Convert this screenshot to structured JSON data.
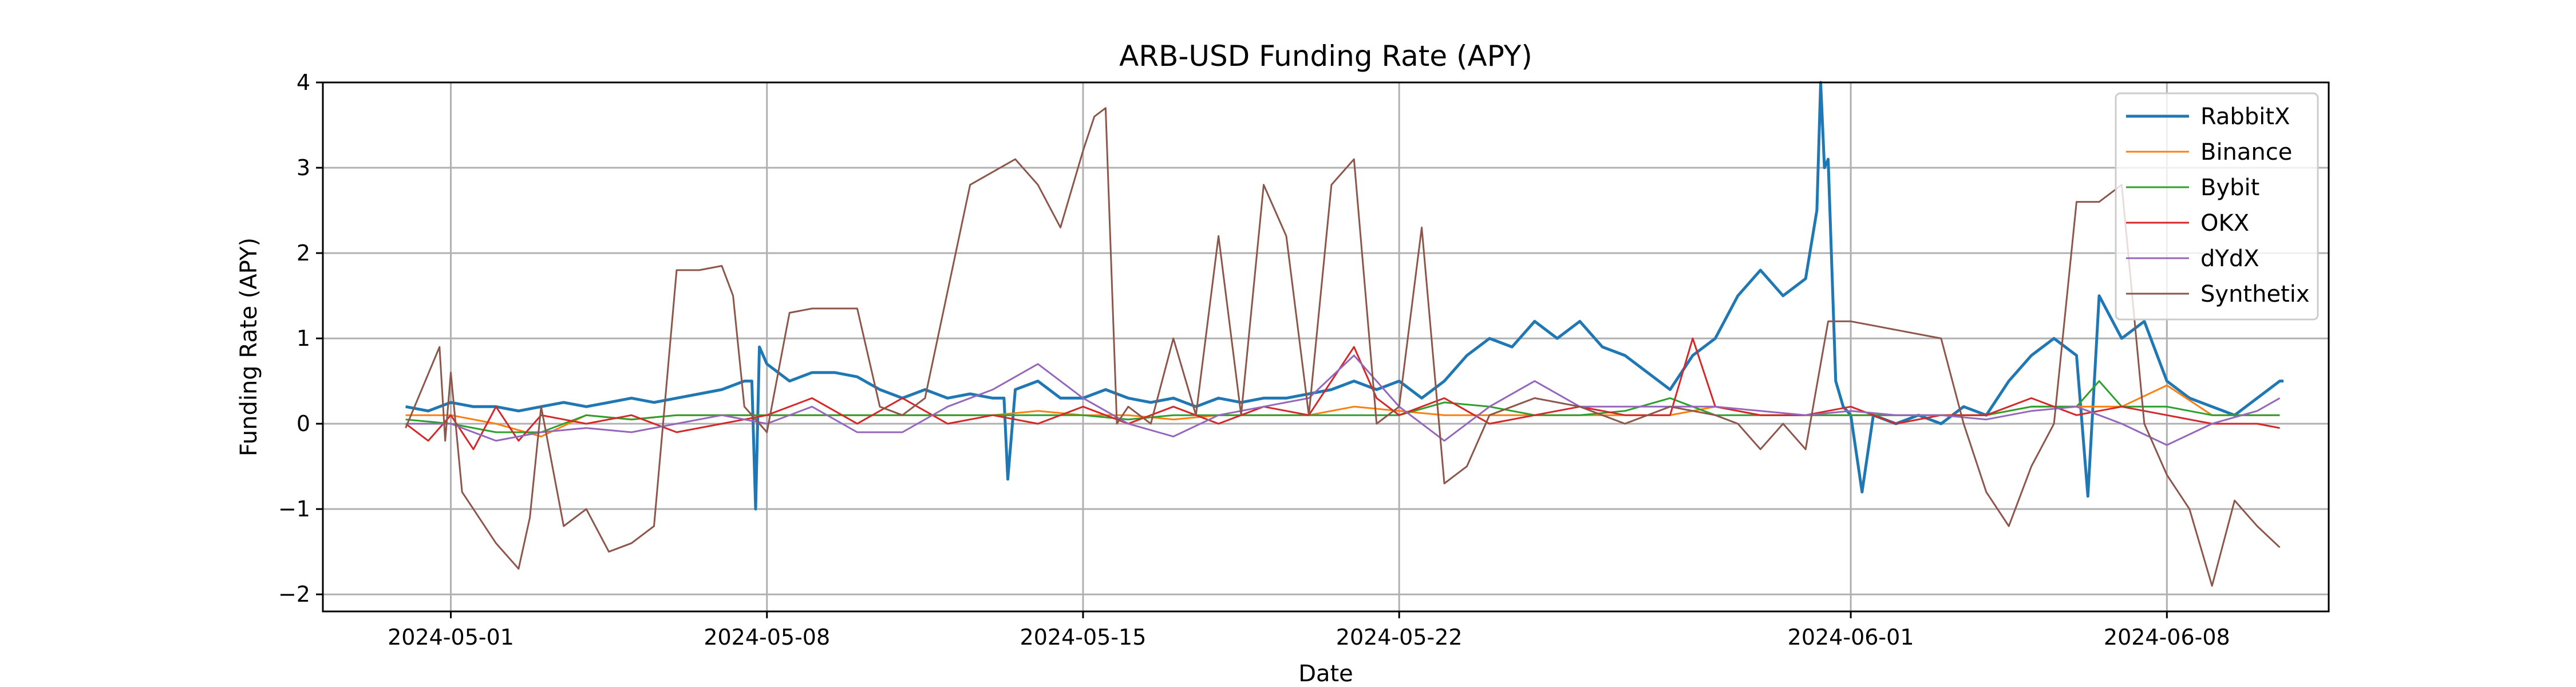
{
  "chart_data": {
    "type": "line",
    "title": "ARB-USD Funding Rate (APY)",
    "xlabel": "Date",
    "ylabel": "Funding Rate (APY)",
    "xlim": [
      "2024-04-28T04:00",
      "2024-06-11T14:00"
    ],
    "ylim": [
      -2.2,
      4
    ],
    "xticks": [
      "2024-05-01",
      "2024-05-08",
      "2024-05-15",
      "2024-05-22",
      "2024-06-01",
      "2024-06-08"
    ],
    "yticks": [
      -2,
      -1,
      0,
      1,
      2,
      3,
      4
    ],
    "yticklabels": [
      "−2",
      "−1",
      "0",
      "1",
      "2",
      "3",
      "4"
    ],
    "grid": true,
    "legend_position": "upper-right",
    "series": [
      {
        "name": "RabbitX",
        "color": "#1f77b4",
        "width": 2,
        "x": [
          "2024-04-30T00:00",
          "2024-04-30T12:00",
          "2024-05-01T00:00",
          "2024-05-01T12:00",
          "2024-05-02T00:00",
          "2024-05-02T12:00",
          "2024-05-03T00:00",
          "2024-05-03T12:00",
          "2024-05-04T00:00",
          "2024-05-04T12:00",
          "2024-05-05T00:00",
          "2024-05-05T12:00",
          "2024-05-06T00:00",
          "2024-05-06T12:00",
          "2024-05-07T00:00",
          "2024-05-07T12:00",
          "2024-05-07T16:00",
          "2024-05-07T18:00",
          "2024-05-07T20:00",
          "2024-05-08T00:00",
          "2024-05-08T12:00",
          "2024-05-09T00:00",
          "2024-05-09T12:00",
          "2024-05-10T00:00",
          "2024-05-10T12:00",
          "2024-05-11T00:00",
          "2024-05-11T12:00",
          "2024-05-12T00:00",
          "2024-05-12T12:00",
          "2024-05-13T00:00",
          "2024-05-13T06:00",
          "2024-05-13T08:00",
          "2024-05-13T12:00",
          "2024-05-14T00:00",
          "2024-05-14T12:00",
          "2024-05-15T00:00",
          "2024-05-15T12:00",
          "2024-05-16T00:00",
          "2024-05-16T12:00",
          "2024-05-17T00:00",
          "2024-05-17T12:00",
          "2024-05-18T00:00",
          "2024-05-18T12:00",
          "2024-05-19T00:00",
          "2024-05-19T12:00",
          "2024-05-20T00:00",
          "2024-05-20T12:00",
          "2024-05-21T00:00",
          "2024-05-21T12:00",
          "2024-05-22T00:00",
          "2024-05-22T12:00",
          "2024-05-23T00:00",
          "2024-05-23T12:00",
          "2024-05-24T00:00",
          "2024-05-24T12:00",
          "2024-05-25T00:00",
          "2024-05-25T12:00",
          "2024-05-26T00:00",
          "2024-05-26T12:00",
          "2024-05-27T00:00",
          "2024-05-27T12:00",
          "2024-05-28T00:00",
          "2024-05-28T12:00",
          "2024-05-29T00:00",
          "2024-05-29T12:00",
          "2024-05-30T00:00",
          "2024-05-30T12:00",
          "2024-05-31T00:00",
          "2024-05-31T06:00",
          "2024-05-31T08:00",
          "2024-05-31T10:00",
          "2024-05-31T12:00",
          "2024-05-31T16:00",
          "2024-05-31T20:00",
          "2024-06-01T00:00",
          "2024-06-01T06:00",
          "2024-06-01T12:00",
          "2024-06-02T00:00",
          "2024-06-02T12:00",
          "2024-06-03T00:00",
          "2024-06-03T12:00",
          "2024-06-04T00:00",
          "2024-06-04T12:00",
          "2024-06-05T00:00",
          "2024-06-05T12:00",
          "2024-06-06T00:00",
          "2024-06-06T06:00",
          "2024-06-06T12:00",
          "2024-06-07T00:00",
          "2024-06-07T12:00",
          "2024-06-08T00:00",
          "2024-06-08T12:00",
          "2024-06-09T00:00",
          "2024-06-09T12:00",
          "2024-06-10T00:00",
          "2024-06-10T12:00",
          "2024-06-10T14:00"
        ],
        "y": [
          0.2,
          0.15,
          0.25,
          0.2,
          0.2,
          0.15,
          0.2,
          0.25,
          0.2,
          0.25,
          0.3,
          0.25,
          0.3,
          0.35,
          0.4,
          0.5,
          0.5,
          -1.0,
          0.9,
          0.7,
          0.5,
          0.6,
          0.6,
          0.55,
          0.4,
          0.3,
          0.4,
          0.3,
          0.35,
          0.3,
          0.3,
          -0.65,
          0.4,
          0.5,
          0.3,
          0.3,
          0.4,
          0.3,
          0.25,
          0.3,
          0.2,
          0.3,
          0.25,
          0.3,
          0.3,
          0.35,
          0.4,
          0.5,
          0.4,
          0.5,
          0.3,
          0.5,
          0.8,
          1.0,
          0.9,
          1.2,
          1.0,
          1.2,
          0.9,
          0.8,
          0.6,
          0.4,
          0.8,
          1.0,
          1.5,
          1.8,
          1.5,
          1.7,
          2.5,
          4.0,
          3.0,
          3.1,
          0.5,
          0.2,
          0.1,
          -0.8,
          0.1,
          0.0,
          0.1,
          0.0,
          0.2,
          0.1,
          0.5,
          0.8,
          1.0,
          0.8,
          -0.85,
          1.5,
          1.0,
          1.2,
          0.5,
          0.3,
          0.2,
          0.1,
          0.3,
          0.5,
          0.5
        ]
      },
      {
        "name": "Binance",
        "color": "#ff7f0e",
        "width": 1,
        "x": [
          "2024-04-30T00:00",
          "2024-05-01T00:00",
          "2024-05-02T00:00",
          "2024-05-03T00:00",
          "2024-05-04T00:00",
          "2024-05-05T00:00",
          "2024-05-06T00:00",
          "2024-05-07T00:00",
          "2024-05-08T00:00",
          "2024-05-09T00:00",
          "2024-05-10T00:00",
          "2024-05-11T00:00",
          "2024-05-12T00:00",
          "2024-05-13T00:00",
          "2024-05-14T00:00",
          "2024-05-15T00:00",
          "2024-05-16T00:00",
          "2024-05-17T00:00",
          "2024-05-18T00:00",
          "2024-05-19T00:00",
          "2024-05-20T00:00",
          "2024-05-21T00:00",
          "2024-05-22T00:00",
          "2024-05-23T00:00",
          "2024-05-24T00:00",
          "2024-05-25T00:00",
          "2024-05-26T00:00",
          "2024-05-27T00:00",
          "2024-05-28T00:00",
          "2024-05-29T00:00",
          "2024-05-30T00:00",
          "2024-05-31T00:00",
          "2024-06-01T00:00",
          "2024-06-02T00:00",
          "2024-06-03T00:00",
          "2024-06-04T00:00",
          "2024-06-05T00:00",
          "2024-06-06T00:00",
          "2024-06-07T00:00",
          "2024-06-08T00:00",
          "2024-06-09T00:00",
          "2024-06-10T00:00",
          "2024-06-10T12:00"
        ],
        "y": [
          0.1,
          0.1,
          0.0,
          -0.15,
          0.1,
          0.05,
          0.1,
          0.1,
          0.1,
          0.1,
          0.1,
          0.1,
          0.1,
          0.1,
          0.15,
          0.1,
          0.1,
          0.05,
          0.1,
          0.1,
          0.1,
          0.2,
          0.15,
          0.1,
          0.1,
          0.1,
          0.1,
          0.1,
          0.1,
          0.2,
          0.1,
          0.1,
          0.1,
          0.1,
          0.1,
          0.1,
          0.2,
          0.2,
          0.2,
          0.45,
          0.1,
          0.1,
          0.1
        ]
      },
      {
        "name": "Bybit",
        "color": "#2ca02c",
        "width": 1,
        "x": [
          "2024-04-30T00:00",
          "2024-05-01T00:00",
          "2024-05-02T00:00",
          "2024-05-03T00:00",
          "2024-05-04T00:00",
          "2024-05-05T00:00",
          "2024-05-06T00:00",
          "2024-05-07T00:00",
          "2024-05-08T00:00",
          "2024-05-09T00:00",
          "2024-05-10T00:00",
          "2024-05-11T00:00",
          "2024-05-12T00:00",
          "2024-05-13T00:00",
          "2024-05-14T00:00",
          "2024-05-15T00:00",
          "2024-05-16T00:00",
          "2024-05-17T00:00",
          "2024-05-18T00:00",
          "2024-05-19T00:00",
          "2024-05-20T00:00",
          "2024-05-21T00:00",
          "2024-05-22T00:00",
          "2024-05-23T00:00",
          "2024-05-24T00:00",
          "2024-05-25T00:00",
          "2024-05-26T00:00",
          "2024-05-27T00:00",
          "2024-05-28T00:00",
          "2024-05-29T00:00",
          "2024-05-30T00:00",
          "2024-05-31T00:00",
          "2024-06-01T00:00",
          "2024-06-02T00:00",
          "2024-06-03T00:00",
          "2024-06-04T00:00",
          "2024-06-05T00:00",
          "2024-06-06T00:00",
          "2024-06-06T12:00",
          "2024-06-07T00:00",
          "2024-06-08T00:00",
          "2024-06-09T00:00",
          "2024-06-10T00:00",
          "2024-06-10T12:00"
        ],
        "y": [
          0.05,
          0.0,
          -0.1,
          -0.1,
          0.1,
          0.05,
          0.1,
          0.1,
          0.1,
          0.1,
          0.1,
          0.1,
          0.1,
          0.1,
          0.1,
          0.1,
          0.05,
          0.1,
          0.1,
          0.1,
          0.1,
          0.1,
          0.1,
          0.25,
          0.2,
          0.1,
          0.1,
          0.15,
          0.3,
          0.1,
          0.1,
          0.1,
          0.1,
          0.1,
          0.1,
          0.1,
          0.2,
          0.2,
          0.5,
          0.2,
          0.2,
          0.1,
          0.1,
          0.1
        ]
      },
      {
        "name": "OKX",
        "color": "#d62728",
        "width": 1,
        "x": [
          "2024-04-30T00:00",
          "2024-04-30T12:00",
          "2024-05-01T00:00",
          "2024-05-01T12:00",
          "2024-05-02T00:00",
          "2024-05-02T12:00",
          "2024-05-03T00:00",
          "2024-05-04T00:00",
          "2024-05-05T00:00",
          "2024-05-06T00:00",
          "2024-05-07T00:00",
          "2024-05-08T00:00",
          "2024-05-09T00:00",
          "2024-05-10T00:00",
          "2024-05-11T00:00",
          "2024-05-12T00:00",
          "2024-05-13T00:00",
          "2024-05-14T00:00",
          "2024-05-15T00:00",
          "2024-05-16T00:00",
          "2024-05-17T00:00",
          "2024-05-18T00:00",
          "2024-05-19T00:00",
          "2024-05-20T00:00",
          "2024-05-21T00:00",
          "2024-05-21T12:00",
          "2024-05-22T00:00",
          "2024-05-23T00:00",
          "2024-05-24T00:00",
          "2024-05-25T00:00",
          "2024-05-26T00:00",
          "2024-05-27T00:00",
          "2024-05-28T00:00",
          "2024-05-28T12:00",
          "2024-05-29T00:00",
          "2024-05-30T00:00",
          "2024-05-31T00:00",
          "2024-06-01T00:00",
          "2024-06-02T00:00",
          "2024-06-03T00:00",
          "2024-06-04T00:00",
          "2024-06-05T00:00",
          "2024-06-06T00:00",
          "2024-06-07T00:00",
          "2024-06-08T00:00",
          "2024-06-09T00:00",
          "2024-06-10T00:00",
          "2024-06-10T12:00"
        ],
        "y": [
          0.0,
          -0.2,
          0.1,
          -0.3,
          0.2,
          -0.2,
          0.1,
          0.0,
          0.1,
          -0.1,
          0.0,
          0.1,
          0.3,
          0.0,
          0.3,
          0.0,
          0.1,
          0.0,
          0.2,
          0.0,
          0.2,
          0.0,
          0.2,
          0.1,
          0.9,
          0.3,
          0.1,
          0.3,
          0.0,
          0.1,
          0.2,
          0.1,
          0.1,
          1.0,
          0.2,
          0.1,
          0.1,
          0.2,
          0.0,
          0.1,
          0.1,
          0.3,
          0.1,
          0.2,
          0.1,
          0.0,
          0.0,
          -0.05
        ]
      },
      {
        "name": "dYdX",
        "color": "#9467bd",
        "width": 1,
        "x": [
          "2024-04-30T00:00",
          "2024-05-01T00:00",
          "2024-05-02T00:00",
          "2024-05-03T00:00",
          "2024-05-04T00:00",
          "2024-05-05T00:00",
          "2024-05-06T00:00",
          "2024-05-07T00:00",
          "2024-05-08T00:00",
          "2024-05-09T00:00",
          "2024-05-10T00:00",
          "2024-05-11T00:00",
          "2024-05-12T00:00",
          "2024-05-13T00:00",
          "2024-05-14T00:00",
          "2024-05-15T00:00",
          "2024-05-16T00:00",
          "2024-05-17T00:00",
          "2024-05-18T00:00",
          "2024-05-19T00:00",
          "2024-05-20T00:00",
          "2024-05-21T00:00",
          "2024-05-22T00:00",
          "2024-05-23T00:00",
          "2024-05-24T00:00",
          "2024-05-25T00:00",
          "2024-05-26T00:00",
          "2024-05-27T00:00",
          "2024-05-28T00:00",
          "2024-05-29T00:00",
          "2024-05-30T00:00",
          "2024-05-31T00:00",
          "2024-06-01T00:00",
          "2024-06-02T00:00",
          "2024-06-03T00:00",
          "2024-06-04T00:00",
          "2024-06-05T00:00",
          "2024-06-06T00:00",
          "2024-06-07T00:00",
          "2024-06-08T00:00",
          "2024-06-09T00:00",
          "2024-06-10T00:00",
          "2024-06-10T12:00"
        ],
        "y": [
          0.0,
          0.0,
          -0.2,
          -0.1,
          -0.05,
          -0.1,
          0.0,
          0.1,
          0.0,
          0.2,
          -0.1,
          -0.1,
          0.2,
          0.4,
          0.7,
          0.3,
          0.0,
          -0.15,
          0.1,
          0.2,
          0.3,
          0.8,
          0.2,
          -0.2,
          0.2,
          0.5,
          0.2,
          0.2,
          0.2,
          0.2,
          0.15,
          0.1,
          0.15,
          0.1,
          0.1,
          0.05,
          0.15,
          0.2,
          0.0,
          -0.25,
          0.0,
          0.15,
          0.3
        ]
      },
      {
        "name": "Synthetix",
        "color": "#8c564b",
        "width": 1,
        "x": [
          "2024-04-30T00:00",
          "2024-04-30T18:00",
          "2024-04-30T21:00",
          "2024-05-01T00:00",
          "2024-05-01T06:00",
          "2024-05-01T12:00",
          "2024-05-02T00:00",
          "2024-05-02T12:00",
          "2024-05-02T18:00",
          "2024-05-03T00:00",
          "2024-05-03T12:00",
          "2024-05-04T00:00",
          "2024-05-04T12:00",
          "2024-05-05T00:00",
          "2024-05-05T12:00",
          "2024-05-06T00:00",
          "2024-05-06T12:00",
          "2024-05-07T00:00",
          "2024-05-07T06:00",
          "2024-05-07T12:00",
          "2024-05-08T00:00",
          "2024-05-08T12:00",
          "2024-05-09T00:00",
          "2024-05-09T12:00",
          "2024-05-10T00:00",
          "2024-05-10T12:00",
          "2024-05-11T00:00",
          "2024-05-11T12:00",
          "2024-05-12T12:00",
          "2024-05-13T12:00",
          "2024-05-14T00:00",
          "2024-05-14T12:00",
          "2024-05-15T00:00",
          "2024-05-15T06:00",
          "2024-05-15T12:00",
          "2024-05-15T18:00",
          "2024-05-16T00:00",
          "2024-05-16T12:00",
          "2024-05-17T00:00",
          "2024-05-17T12:00",
          "2024-05-18T00:00",
          "2024-05-18T12:00",
          "2024-05-19T00:00",
          "2024-05-19T12:00",
          "2024-05-20T00:00",
          "2024-05-20T12:00",
          "2024-05-21T00:00",
          "2024-05-21T12:00",
          "2024-05-22T00:00",
          "2024-05-22T12:00",
          "2024-05-23T00:00",
          "2024-05-23T12:00",
          "2024-05-24T00:00",
          "2024-05-24T12:00",
          "2024-05-25T00:00",
          "2024-05-26T00:00",
          "2024-05-27T00:00",
          "2024-05-28T00:00",
          "2024-05-29T00:00",
          "2024-05-29T12:00",
          "2024-05-30T00:00",
          "2024-05-30T12:00",
          "2024-05-31T00:00",
          "2024-05-31T12:00",
          "2024-06-01T00:00",
          "2024-06-01T12:00",
          "2024-06-02T00:00",
          "2024-06-03T00:00",
          "2024-06-03T12:00",
          "2024-06-04T00:00",
          "2024-06-04T12:00",
          "2024-06-05T00:00",
          "2024-06-05T12:00",
          "2024-06-06T00:00",
          "2024-06-06T12:00",
          "2024-06-07T00:00",
          "2024-06-07T12:00",
          "2024-06-08T00:00",
          "2024-06-08T12:00",
          "2024-06-09T00:00",
          "2024-06-09T12:00",
          "2024-06-10T00:00",
          "2024-06-10T12:00"
        ],
        "y": [
          -0.05,
          0.9,
          -0.2,
          0.6,
          -0.8,
          -1.0,
          -1.4,
          -1.7,
          -1.1,
          0.2,
          -1.2,
          -1.0,
          -1.5,
          -1.4,
          -1.2,
          1.8,
          1.8,
          1.85,
          1.5,
          0.2,
          -0.1,
          1.3,
          1.35,
          1.35,
          1.35,
          0.2,
          0.1,
          0.3,
          2.8,
          3.1,
          2.8,
          2.3,
          3.2,
          3.6,
          3.7,
          0.0,
          0.2,
          0.0,
          1.0,
          0.1,
          2.2,
          0.1,
          2.8,
          2.2,
          0.1,
          2.8,
          3.1,
          0.0,
          0.2,
          2.3,
          -0.7,
          -0.5,
          0.1,
          0.2,
          0.3,
          0.2,
          0.0,
          0.2,
          0.1,
          0.0,
          -0.3,
          0.0,
          -0.3,
          1.2,
          1.2,
          1.15,
          1.1,
          1.0,
          0.0,
          -0.8,
          -1.2,
          -0.5,
          0.0,
          2.6,
          2.6,
          2.8,
          0.0,
          -0.6,
          -1.0,
          -1.9,
          -0.9,
          -1.2,
          -1.45
        ]
      }
    ]
  }
}
